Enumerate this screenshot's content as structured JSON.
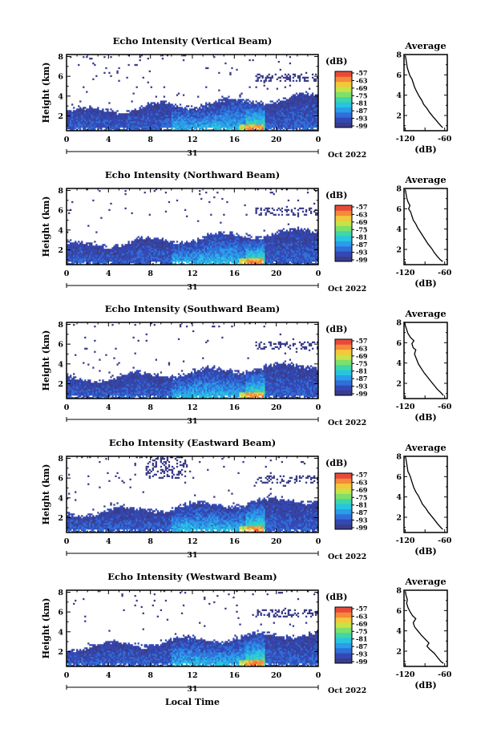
{
  "figure": {
    "xaxis_label": "Local Time",
    "date_label": "Oct 2022",
    "day_label": "31"
  },
  "colorbar": {
    "unit": "(dB)",
    "ticks": [
      "-57",
      "-63",
      "-69",
      "-75",
      "-81",
      "-87",
      "-93",
      "-99"
    ],
    "colors": [
      "#3a3d8a",
      "#3348b5",
      "#2f6fd8",
      "#2a9de8",
      "#28c4e0",
      "#3fd6a8",
      "#7ee06a",
      "#c8e24a",
      "#f2c83c",
      "#f58a3a",
      "#e84a3a"
    ]
  },
  "chart_data": [
    {
      "type": "heatmap",
      "title": "Echo Intensity (Vertical Beam)",
      "ylabel": "Height (km)",
      "x_ticks": [
        "0",
        "4",
        "8",
        "12",
        "16",
        "20",
        "0"
      ],
      "xlim": [
        0,
        24
      ],
      "y_ticks": [
        "2",
        "4",
        "6",
        "8"
      ],
      "ylim": [
        0.5,
        8.2
      ],
      "profile": {
        "title": "Average",
        "xlabel": "(dB)",
        "x_ticks": [
          "-120",
          "-60"
        ],
        "xlim": [
          -122,
          -56
        ],
        "y_ticks": [
          "2",
          "4",
          "6",
          "8"
        ],
        "ylim": [
          0.5,
          8
        ],
        "points": [
          [
            -63,
            0.8
          ],
          [
            -66,
            1.0
          ],
          [
            -70,
            1.3
          ],
          [
            -74,
            1.6
          ],
          [
            -78,
            1.9
          ],
          [
            -83,
            2.3
          ],
          [
            -87,
            2.7
          ],
          [
            -92,
            3.1
          ],
          [
            -95,
            3.5
          ],
          [
            -99,
            3.9
          ],
          [
            -103,
            4.4
          ],
          [
            -106,
            4.8
          ],
          [
            -108,
            5.2
          ],
          [
            -110,
            5.6
          ],
          [
            -113,
            5.9
          ],
          [
            -115,
            6.3
          ],
          [
            -117,
            6.7
          ],
          [
            -118,
            7.1
          ],
          [
            -119,
            7.5
          ],
          [
            -120,
            7.9
          ]
        ]
      }
    },
    {
      "type": "heatmap",
      "title": "Echo Intensity (Northward Beam)",
      "ylabel": "Height (km)",
      "x_ticks": [
        "0",
        "4",
        "8",
        "12",
        "16",
        "20",
        "0"
      ],
      "xlim": [
        0,
        24
      ],
      "y_ticks": [
        "2",
        "4",
        "6",
        "8"
      ],
      "ylim": [
        0.5,
        8.2
      ],
      "profile": {
        "title": "Average",
        "xlabel": "(dB)",
        "x_ticks": [
          "-120",
          "-60"
        ],
        "xlim": [
          -122,
          -56
        ],
        "y_ticks": [
          "2",
          "4",
          "6",
          "8"
        ],
        "ylim": [
          0.5,
          8
        ],
        "points": [
          [
            -63,
            0.8
          ],
          [
            -67,
            1.0
          ],
          [
            -71,
            1.3
          ],
          [
            -76,
            1.7
          ],
          [
            -80,
            2.1
          ],
          [
            -85,
            2.5
          ],
          [
            -89,
            2.9
          ],
          [
            -93,
            3.3
          ],
          [
            -97,
            3.7
          ],
          [
            -101,
            4.1
          ],
          [
            -104,
            4.5
          ],
          [
            -108,
            4.9
          ],
          [
            -110,
            5.3
          ],
          [
            -112,
            5.7
          ],
          [
            -115,
            6.0
          ],
          [
            -113,
            6.3
          ],
          [
            -116,
            6.7
          ],
          [
            -118,
            7.1
          ],
          [
            -119,
            7.5
          ],
          [
            -120,
            7.9
          ]
        ]
      }
    },
    {
      "type": "heatmap",
      "title": "Echo Intensity (Southward Beam)",
      "ylabel": "Height (km)",
      "x_ticks": [
        "0",
        "4",
        "8",
        "12",
        "16",
        "20",
        "0"
      ],
      "xlim": [
        0,
        24
      ],
      "y_ticks": [
        "2",
        "4",
        "6",
        "8"
      ],
      "ylim": [
        0.5,
        8.2
      ],
      "profile": {
        "title": "Average",
        "xlabel": "(dB)",
        "x_ticks": [
          "-120",
          "-60"
        ],
        "xlim": [
          -122,
          -56
        ],
        "y_ticks": [
          "2",
          "4",
          "6",
          "8"
        ],
        "ylim": [
          0.5,
          8
        ],
        "points": [
          [
            -62,
            0.8
          ],
          [
            -66,
            1.1
          ],
          [
            -71,
            1.4
          ],
          [
            -76,
            1.8
          ],
          [
            -81,
            2.2
          ],
          [
            -86,
            2.6
          ],
          [
            -91,
            3.0
          ],
          [
            -95,
            3.4
          ],
          [
            -100,
            3.9
          ],
          [
            -103,
            4.4
          ],
          [
            -106,
            4.9
          ],
          [
            -104,
            5.3
          ],
          [
            -108,
            5.5
          ],
          [
            -110,
            5.9
          ],
          [
            -107,
            6.2
          ],
          [
            -112,
            6.5
          ],
          [
            -116,
            6.9
          ],
          [
            -118,
            7.3
          ],
          [
            -120,
            7.7
          ],
          [
            -121,
            8.0
          ]
        ]
      }
    },
    {
      "type": "heatmap",
      "title": "Echo Intensity (Eastward Beam)",
      "ylabel": "Height (km)",
      "x_ticks": [
        "0",
        "4",
        "8",
        "12",
        "16",
        "20",
        "0"
      ],
      "xlim": [
        0,
        24
      ],
      "y_ticks": [
        "2",
        "4",
        "6",
        "8"
      ],
      "ylim": [
        0.5,
        8.2
      ],
      "profile": {
        "title": "Average",
        "xlabel": "(dB)",
        "x_ticks": [
          "-120",
          "-60"
        ],
        "xlim": [
          -122,
          -56
        ],
        "y_ticks": [
          "2",
          "4",
          "6",
          "8"
        ],
        "ylim": [
          0.5,
          8
        ],
        "points": [
          [
            -63,
            0.8
          ],
          [
            -66,
            1.0
          ],
          [
            -70,
            1.3
          ],
          [
            -75,
            1.7
          ],
          [
            -80,
            2.1
          ],
          [
            -85,
            2.5
          ],
          [
            -89,
            2.9
          ],
          [
            -94,
            3.3
          ],
          [
            -97,
            3.7
          ],
          [
            -100,
            4.1
          ],
          [
            -104,
            4.5
          ],
          [
            -107,
            4.9
          ],
          [
            -109,
            5.3
          ],
          [
            -111,
            5.7
          ],
          [
            -113,
            6.1
          ],
          [
            -116,
            6.5
          ],
          [
            -117,
            6.9
          ],
          [
            -118,
            7.3
          ],
          [
            -119,
            7.7
          ],
          [
            -120,
            8.0
          ]
        ]
      }
    },
    {
      "type": "heatmap",
      "title": "Echo Intensity (Westward Beam)",
      "ylabel": "Height (km)",
      "x_ticks": [
        "0",
        "4",
        "8",
        "12",
        "16",
        "20",
        "0"
      ],
      "xlim": [
        0,
        24
      ],
      "y_ticks": [
        "2",
        "4",
        "6",
        "8"
      ],
      "ylim": [
        0.5,
        8.2
      ],
      "profile": {
        "title": "Average",
        "xlabel": "(dB)",
        "x_ticks": [
          "-120",
          "-60"
        ],
        "xlim": [
          -122,
          -56
        ],
        "y_ticks": [
          "2",
          "4",
          "6",
          "8"
        ],
        "ylim": [
          0.5,
          8
        ],
        "points": [
          [
            -62,
            0.8
          ],
          [
            -66,
            1.0
          ],
          [
            -71,
            1.4
          ],
          [
            -76,
            1.8
          ],
          [
            -83,
            2.2
          ],
          [
            -87,
            2.5
          ],
          [
            -84,
            2.8
          ],
          [
            -90,
            3.2
          ],
          [
            -96,
            3.6
          ],
          [
            -101,
            4.0
          ],
          [
            -106,
            4.4
          ],
          [
            -108,
            4.8
          ],
          [
            -104,
            5.2
          ],
          [
            -109,
            5.5
          ],
          [
            -113,
            5.9
          ],
          [
            -116,
            6.3
          ],
          [
            -118,
            6.7
          ],
          [
            -117,
            7.1
          ],
          [
            -119,
            7.5
          ],
          [
            -120,
            7.9
          ]
        ]
      }
    }
  ]
}
